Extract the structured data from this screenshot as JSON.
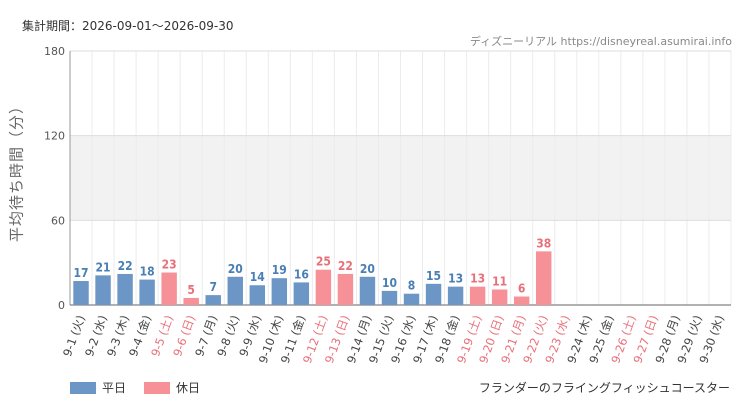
{
  "header": {
    "period": "集計期間：2026-09-01〜2026-09-30",
    "source": "ディズニーリアル https://disneyreal.asumirai.info"
  },
  "legend": {
    "weekday": "平日",
    "holiday": "休日"
  },
  "attraction": "フランダーのフライングフィッシュコースター",
  "colors": {
    "weekday": "#6b96c5",
    "holiday": "#f69198",
    "weekday_label": "#4a7fb5",
    "holiday_label": "#e8707a"
  },
  "chart_data": {
    "type": "bar",
    "ylabel": "平均待ち時間（分）",
    "ylim": [
      0,
      180
    ],
    "yticks": [
      0,
      60,
      120,
      180
    ],
    "categories": [
      "9-1 (火)",
      "9-2 (水)",
      "9-3 (木)",
      "9-4 (金)",
      "9-5 (土)",
      "9-6 (日)",
      "9-7 (月)",
      "9-8 (火)",
      "9-9 (水)",
      "9-10 (木)",
      "9-11 (金)",
      "9-12 (土)",
      "9-13 (日)",
      "9-14 (月)",
      "9-15 (火)",
      "9-16 (水)",
      "9-17 (木)",
      "9-18 (金)",
      "9-19 (土)",
      "9-20 (日)",
      "9-21 (月)",
      "9-22 (火)",
      "9-23 (水)",
      "9-24 (木)",
      "9-25 (金)",
      "9-26 (土)",
      "9-27 (日)",
      "9-28 (月)",
      "9-29 (火)",
      "9-30 (水)"
    ],
    "values": [
      17,
      21,
      22,
      18,
      23,
      5,
      7,
      20,
      14,
      19,
      16,
      25,
      22,
      20,
      10,
      8,
      15,
      13,
      13,
      11,
      6,
      38,
      null,
      null,
      null,
      null,
      null,
      null,
      null,
      null
    ],
    "holiday": [
      false,
      false,
      false,
      false,
      true,
      true,
      false,
      false,
      false,
      false,
      false,
      true,
      true,
      false,
      false,
      false,
      false,
      false,
      true,
      true,
      true,
      true,
      true,
      false,
      false,
      true,
      true,
      false,
      false,
      false
    ],
    "grid": true,
    "legend_position": "bottom-left"
  }
}
